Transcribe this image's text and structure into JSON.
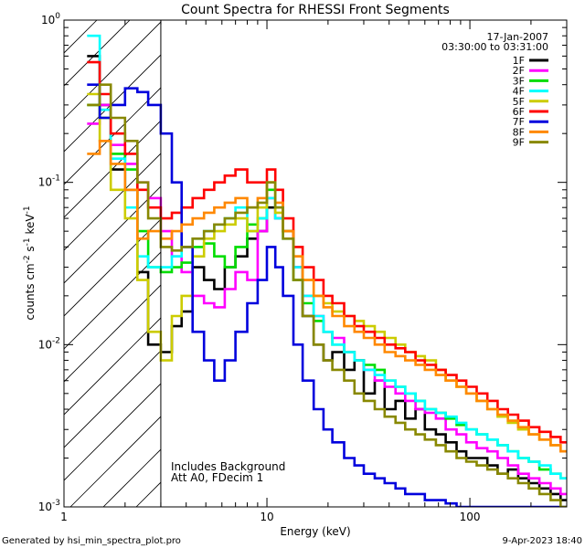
{
  "chart_data": {
    "type": "line",
    "title": "Count Spectra for RHESSI Front Segments",
    "xlabel": "Energy (keV)",
    "ylabel": "counts cm",
    "ylabel_sup1": "-2",
    "ylabel_mid": " s",
    "ylabel_sup2": "-1",
    "ylabel_end": " keV",
    "ylabel_sup3": "-1",
    "xscale": "log",
    "yscale": "log",
    "xlim": [
      1,
      300
    ],
    "ylim": [
      0.001,
      1
    ],
    "x_ticks": [
      {
        "v": 1,
        "label": "1"
      },
      {
        "v": 10,
        "label": "10"
      },
      {
        "v": 100,
        "label": "100"
      }
    ],
    "y_ticks": [
      {
        "v": 0.001,
        "base": "10",
        "exp": "-3"
      },
      {
        "v": 0.01,
        "base": "10",
        "exp": "-2"
      },
      {
        "v": 0.1,
        "base": "10",
        "exp": "-1"
      },
      {
        "v": 1,
        "base": "10",
        "exp": "0"
      }
    ],
    "hatched_region_max_energy": 3,
    "date": "17-Jan-2007",
    "time_range": "03:30:00 to 03:31:00",
    "annotation_line1": "Includes Background",
    "annotation_line2": "Att A0, FDecim 1",
    "footer_left": "Generated by hsi_min_spectra_plot.pro",
    "footer_right": "9-Apr-2023 18:40",
    "series": [
      {
        "name": "1F",
        "color": "#000000",
        "x": [
          1.3,
          1.5,
          1.7,
          2.0,
          2.3,
          2.6,
          3.0,
          3.4,
          3.8,
          4.3,
          4.9,
          5.5,
          6.2,
          7.0,
          8.0,
          9.0,
          10.0,
          11.0,
          12.0,
          13.5,
          15,
          17,
          19,
          21,
          24,
          27,
          30,
          34,
          38,
          43,
          48,
          54,
          60,
          68,
          76,
          86,
          96,
          108,
          122,
          137,
          154,
          173,
          195,
          220,
          250,
          280
        ],
        "values": [
          0.6,
          0.3,
          0.12,
          0.09,
          0.028,
          0.01,
          0.009,
          0.013,
          0.016,
          0.03,
          0.025,
          0.022,
          0.03,
          0.035,
          0.045,
          0.05,
          0.07,
          0.06,
          0.05,
          0.03,
          0.015,
          0.01,
          0.008,
          0.009,
          0.007,
          0.008,
          0.005,
          0.006,
          0.004,
          0.0045,
          0.0035,
          0.004,
          0.003,
          0.0028,
          0.0025,
          0.0022,
          0.002,
          0.002,
          0.0018,
          0.0016,
          0.0017,
          0.0015,
          0.0014,
          0.0013,
          0.0012,
          0.0011
        ]
      },
      {
        "name": "2F",
        "color": "#ff00ff",
        "x": [
          1.3,
          1.5,
          1.7,
          2.0,
          2.3,
          2.6,
          3.0,
          3.4,
          3.8,
          4.3,
          4.9,
          5.5,
          6.2,
          7.0,
          8.0,
          9.0,
          10.0,
          11.0,
          12.0,
          13.5,
          15,
          17,
          19,
          21,
          24,
          27,
          30,
          34,
          38,
          43,
          48,
          54,
          60,
          68,
          76,
          86,
          96,
          108,
          122,
          137,
          154,
          173,
          195,
          220,
          250,
          280
        ],
        "values": [
          0.23,
          0.3,
          0.17,
          0.13,
          0.1,
          0.08,
          0.05,
          0.035,
          0.028,
          0.02,
          0.018,
          0.017,
          0.022,
          0.028,
          0.025,
          0.05,
          0.08,
          0.06,
          0.05,
          0.03,
          0.02,
          0.015,
          0.012,
          0.011,
          0.009,
          0.008,
          0.007,
          0.006,
          0.0055,
          0.005,
          0.0045,
          0.004,
          0.0038,
          0.0035,
          0.003,
          0.0028,
          0.0025,
          0.0023,
          0.0022,
          0.002,
          0.0018,
          0.0016,
          0.0015,
          0.0014,
          0.0013,
          0.0012
        ]
      },
      {
        "name": "3F",
        "color": "#00dd00",
        "x": [
          1.3,
          1.5,
          1.7,
          2.0,
          2.3,
          2.6,
          3.0,
          3.4,
          3.8,
          4.3,
          4.9,
          5.5,
          6.2,
          7.0,
          8.0,
          9.0,
          10.0,
          11.0,
          12.0,
          13.5,
          15,
          17,
          19,
          21,
          24,
          27,
          30,
          34,
          38,
          43,
          48,
          54,
          60,
          68,
          76,
          86,
          96,
          108,
          122,
          137,
          154,
          173,
          195,
          220,
          250,
          280
        ],
        "values": [
          0.3,
          0.25,
          0.15,
          0.12,
          0.05,
          0.03,
          0.028,
          0.03,
          0.032,
          0.04,
          0.042,
          0.035,
          0.03,
          0.04,
          0.055,
          0.06,
          0.09,
          0.07,
          0.05,
          0.025,
          0.018,
          0.014,
          0.012,
          0.01,
          0.009,
          0.008,
          0.0075,
          0.007,
          0.006,
          0.0055,
          0.005,
          0.0045,
          0.004,
          0.0038,
          0.0035,
          0.0032,
          0.003,
          0.0028,
          0.0026,
          0.0024,
          0.0022,
          0.002,
          0.0019,
          0.0017,
          0.0016,
          0.0015
        ]
      },
      {
        "name": "4F",
        "color": "#00ffff",
        "x": [
          1.3,
          1.5,
          1.7,
          2.0,
          2.3,
          2.6,
          3.0,
          3.4,
          3.8,
          4.3,
          4.9,
          5.5,
          6.2,
          7.0,
          8.0,
          9.0,
          10.0,
          11.0,
          12.0,
          13.5,
          15,
          17,
          19,
          21,
          24,
          27,
          30,
          34,
          38,
          43,
          48,
          54,
          60,
          68,
          76,
          86,
          96,
          108,
          122,
          137,
          154,
          173,
          195,
          220,
          250,
          280
        ],
        "values": [
          0.8,
          0.28,
          0.14,
          0.07,
          0.035,
          0.03,
          0.03,
          0.035,
          0.04,
          0.045,
          0.05,
          0.055,
          0.06,
          0.07,
          0.05,
          0.06,
          0.08,
          0.06,
          0.045,
          0.03,
          0.02,
          0.015,
          0.012,
          0.01,
          0.009,
          0.008,
          0.007,
          0.0065,
          0.006,
          0.0055,
          0.005,
          0.0045,
          0.004,
          0.0038,
          0.0036,
          0.0033,
          0.003,
          0.0028,
          0.0026,
          0.0024,
          0.0022,
          0.002,
          0.0019,
          0.0018,
          0.0016,
          0.0015
        ]
      },
      {
        "name": "5F",
        "color": "#cccc00",
        "x": [
          1.3,
          1.5,
          1.7,
          2.0,
          2.3,
          2.6,
          3.0,
          3.4,
          3.8,
          4.3,
          4.9,
          5.5,
          6.2,
          7.0,
          8.0,
          9.0,
          10.0,
          11.0,
          12.0,
          13.5,
          15,
          17,
          19,
          21,
          24,
          27,
          30,
          34,
          38,
          43,
          48,
          54,
          60,
          68,
          76,
          86,
          96,
          108,
          122,
          137,
          154,
          173,
          195,
          220,
          250,
          280
        ],
        "values": [
          0.35,
          0.18,
          0.09,
          0.06,
          0.025,
          0.012,
          0.008,
          0.015,
          0.02,
          0.035,
          0.045,
          0.05,
          0.055,
          0.06,
          0.05,
          0.07,
          0.1,
          0.065,
          0.05,
          0.035,
          0.025,
          0.02,
          0.018,
          0.016,
          0.015,
          0.014,
          0.013,
          0.012,
          0.011,
          0.01,
          0.009,
          0.0085,
          0.008,
          0.007,
          0.006,
          0.0055,
          0.005,
          0.0045,
          0.004,
          0.0036,
          0.0033,
          0.003,
          0.0028,
          0.0026,
          0.0024,
          0.0022
        ]
      },
      {
        "name": "6F",
        "color": "#ff0000",
        "x": [
          1.3,
          1.5,
          1.7,
          2.0,
          2.3,
          2.6,
          3.0,
          3.4,
          3.8,
          4.3,
          4.9,
          5.5,
          6.2,
          7.0,
          8.0,
          9.0,
          10.0,
          11.0,
          12.0,
          13.5,
          15,
          17,
          19,
          21,
          24,
          27,
          30,
          34,
          38,
          43,
          48,
          54,
          60,
          68,
          76,
          86,
          96,
          108,
          122,
          137,
          154,
          173,
          195,
          220,
          250,
          280
        ],
        "values": [
          0.55,
          0.35,
          0.2,
          0.15,
          0.09,
          0.07,
          0.06,
          0.065,
          0.07,
          0.08,
          0.09,
          0.1,
          0.11,
          0.12,
          0.1,
          0.1,
          0.12,
          0.09,
          0.06,
          0.04,
          0.03,
          0.025,
          0.02,
          0.018,
          0.015,
          0.013,
          0.012,
          0.011,
          0.01,
          0.0095,
          0.009,
          0.008,
          0.0075,
          0.007,
          0.0065,
          0.006,
          0.0055,
          0.005,
          0.0045,
          0.004,
          0.0037,
          0.0034,
          0.0031,
          0.0029,
          0.0027,
          0.0025
        ]
      },
      {
        "name": "7F",
        "color": "#0000dd",
        "x": [
          1.3,
          1.5,
          1.7,
          2.0,
          2.3,
          2.6,
          3.0,
          3.4,
          3.8,
          4.3,
          4.9,
          5.5,
          6.2,
          7.0,
          8.0,
          9.0,
          10.0,
          11.0,
          12.0,
          13.5,
          15,
          17,
          19,
          21,
          24,
          27,
          30,
          34,
          38,
          43,
          48,
          54,
          60,
          68,
          76,
          86,
          96,
          108,
          122,
          137,
          154,
          173,
          195,
          220,
          250,
          280
        ],
        "values": [
          0.4,
          0.25,
          0.3,
          0.38,
          0.36,
          0.3,
          0.2,
          0.1,
          0.04,
          0.012,
          0.008,
          0.006,
          0.008,
          0.012,
          0.018,
          0.025,
          0.04,
          0.03,
          0.02,
          0.01,
          0.006,
          0.004,
          0.003,
          0.0025,
          0.002,
          0.0018,
          0.0016,
          0.0015,
          0.0014,
          0.0013,
          0.0012,
          0.0012,
          0.0011,
          0.0011,
          0.00105,
          0.001,
          0.001,
          0.001,
          0.001,
          0.001,
          0.001,
          0.001,
          0.001,
          0.001,
          0.001,
          0.001
        ]
      },
      {
        "name": "8F",
        "color": "#ff8800",
        "x": [
          1.3,
          1.5,
          1.7,
          2.0,
          2.3,
          2.6,
          3.0,
          3.4,
          3.8,
          4.3,
          4.9,
          5.5,
          6.2,
          7.0,
          8.0,
          9.0,
          10.0,
          11.0,
          12.0,
          13.5,
          15,
          17,
          19,
          21,
          24,
          27,
          30,
          34,
          38,
          43,
          48,
          54,
          60,
          68,
          76,
          86,
          96,
          108,
          122,
          137,
          154,
          173,
          195,
          220,
          250,
          280
        ],
        "values": [
          0.15,
          0.18,
          0.13,
          0.09,
          0.045,
          0.05,
          0.045,
          0.05,
          0.055,
          0.06,
          0.065,
          0.07,
          0.075,
          0.08,
          0.07,
          0.08,
          0.1,
          0.075,
          0.05,
          0.035,
          0.025,
          0.02,
          0.017,
          0.015,
          0.013,
          0.012,
          0.011,
          0.01,
          0.009,
          0.0085,
          0.008,
          0.0075,
          0.007,
          0.0065,
          0.006,
          0.0055,
          0.005,
          0.0045,
          0.004,
          0.0037,
          0.0034,
          0.0031,
          0.0028,
          0.0026,
          0.0024,
          0.0022
        ]
      },
      {
        "name": "9F",
        "color": "#888800",
        "x": [
          1.3,
          1.5,
          1.7,
          2.0,
          2.3,
          2.6,
          3.0,
          3.4,
          3.8,
          4.3,
          4.9,
          5.5,
          6.2,
          7.0,
          8.0,
          9.0,
          10.0,
          11.0,
          12.0,
          13.5,
          15,
          17,
          19,
          21,
          24,
          27,
          30,
          34,
          38,
          43,
          48,
          54,
          60,
          68,
          76,
          86,
          96,
          108,
          122,
          137,
          154,
          173,
          195,
          220,
          250,
          280
        ],
        "values": [
          0.3,
          0.4,
          0.25,
          0.18,
          0.1,
          0.06,
          0.04,
          0.038,
          0.04,
          0.045,
          0.05,
          0.055,
          0.06,
          0.065,
          0.07,
          0.075,
          0.1,
          0.07,
          0.045,
          0.025,
          0.015,
          0.01,
          0.008,
          0.007,
          0.006,
          0.005,
          0.0045,
          0.004,
          0.0036,
          0.0033,
          0.003,
          0.0028,
          0.0026,
          0.0024,
          0.0022,
          0.002,
          0.0019,
          0.0018,
          0.0017,
          0.0016,
          0.0015,
          0.0014,
          0.0013,
          0.0012,
          0.0011,
          0.001
        ]
      }
    ]
  }
}
